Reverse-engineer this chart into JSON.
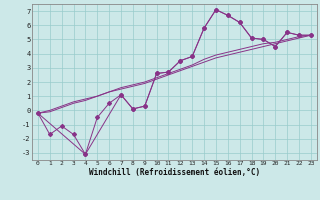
{
  "xlabel": "Windchill (Refroidissement éolien,°C)",
  "xlim": [
    -0.5,
    23.5
  ],
  "ylim": [
    -3.5,
    7.5
  ],
  "xticks": [
    0,
    1,
    2,
    3,
    4,
    5,
    6,
    7,
    8,
    9,
    10,
    11,
    12,
    13,
    14,
    15,
    16,
    17,
    18,
    19,
    20,
    21,
    22,
    23
  ],
  "yticks": [
    -3,
    -2,
    -1,
    0,
    1,
    2,
    3,
    4,
    5,
    6,
    7
  ],
  "background_color": "#cce8e8",
  "line_color": "#883388",
  "grid_color": "#99cccc",
  "line1_x": [
    0,
    1,
    2,
    3,
    4,
    5,
    6,
    7,
    8,
    9,
    10,
    11,
    12,
    13,
    14,
    15,
    16,
    17,
    18,
    19,
    20,
    21,
    22,
    23
  ],
  "line1_y": [
    -0.2,
    -1.7,
    -1.1,
    -1.7,
    -3.1,
    -0.5,
    0.5,
    1.1,
    0.1,
    0.3,
    2.6,
    2.7,
    3.5,
    3.8,
    5.8,
    7.1,
    6.7,
    6.2,
    5.1,
    5.0,
    4.5,
    5.5,
    5.3,
    5.3
  ],
  "line2_x": [
    0,
    1,
    2,
    3,
    4,
    5,
    6,
    7,
    8,
    9,
    10,
    11,
    12,
    13,
    14,
    15,
    16,
    17,
    18,
    19,
    20,
    21,
    22,
    23
  ],
  "line2_y": [
    -0.2,
    -0.1,
    0.2,
    0.5,
    0.7,
    1.0,
    1.3,
    1.5,
    1.7,
    1.9,
    2.2,
    2.5,
    2.8,
    3.1,
    3.4,
    3.7,
    3.9,
    4.1,
    4.3,
    4.5,
    4.7,
    4.9,
    5.1,
    5.3
  ],
  "line3_x": [
    0,
    1,
    2,
    3,
    4,
    5,
    6,
    7,
    8,
    9,
    10,
    11,
    12,
    13,
    14,
    15,
    16,
    17,
    18,
    19,
    20,
    21,
    22,
    23
  ],
  "line3_y": [
    -0.2,
    0.0,
    0.3,
    0.6,
    0.8,
    1.0,
    1.3,
    1.6,
    1.8,
    2.0,
    2.3,
    2.6,
    2.9,
    3.2,
    3.6,
    3.9,
    4.1,
    4.3,
    4.5,
    4.7,
    4.8,
    5.0,
    5.2,
    5.3
  ],
  "line4_x": [
    0,
    4,
    7,
    8,
    9,
    10,
    11,
    12,
    13,
    14,
    15,
    16,
    17,
    18,
    19,
    20,
    21,
    22,
    23
  ],
  "line4_y": [
    -0.2,
    -3.1,
    1.1,
    0.1,
    0.3,
    2.6,
    2.7,
    3.5,
    3.8,
    5.8,
    7.1,
    6.7,
    6.2,
    5.1,
    5.0,
    4.5,
    5.5,
    5.3,
    5.3
  ]
}
